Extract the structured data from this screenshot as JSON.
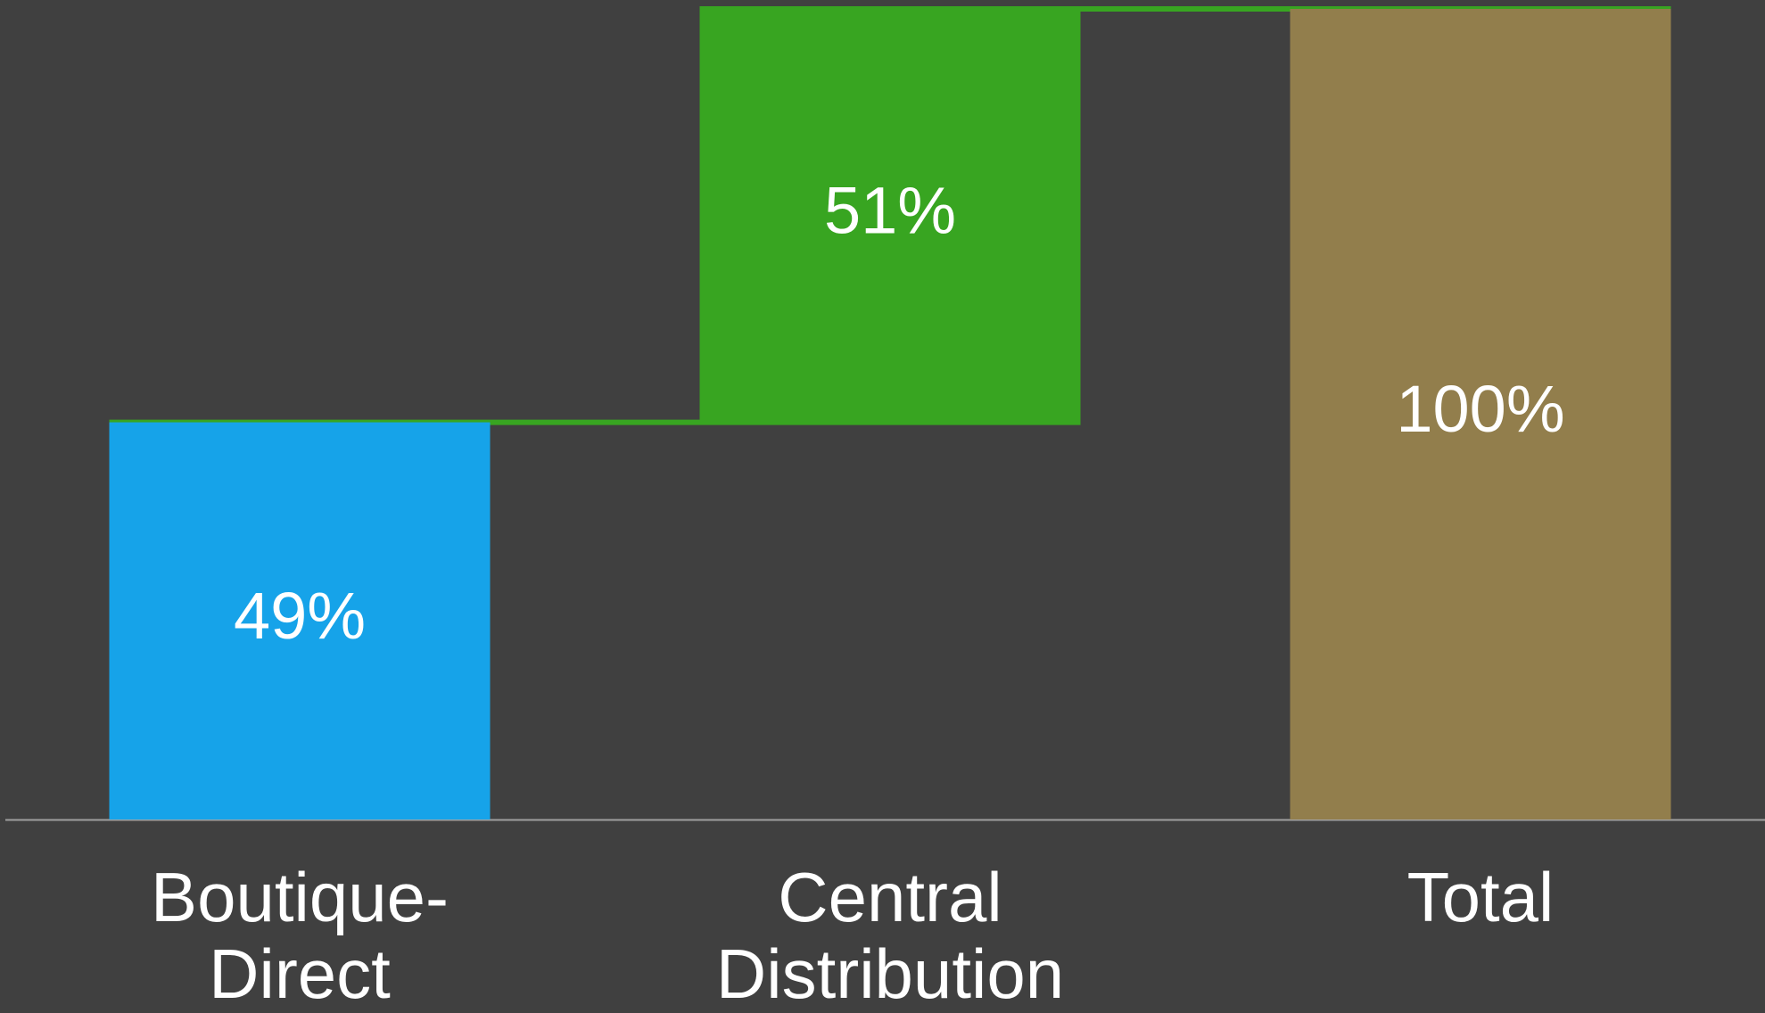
{
  "chart_data": {
    "type": "waterfall",
    "categories": [
      "Boutique-Direct",
      "Central Distribution",
      "Total"
    ],
    "values": [
      49,
      51,
      100
    ],
    "value_labels": [
      "49%",
      "51%",
      "100%"
    ],
    "totals": [
      false,
      false,
      true
    ],
    "colors": [
      "#16a3e9",
      "#38a521",
      "#927e4c"
    ],
    "connector_color": "#38a521",
    "ylim": [
      0,
      100
    ]
  }
}
